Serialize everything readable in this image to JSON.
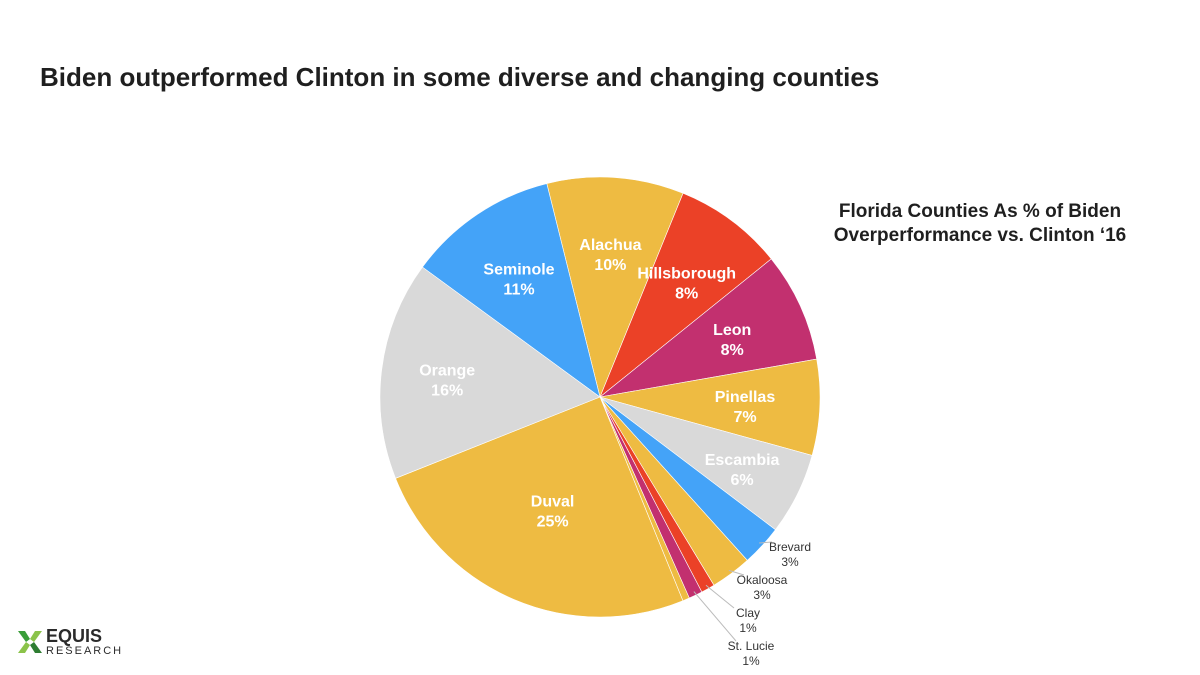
{
  "headline": "Biden outperformed Clinton in some diverse and changing counties",
  "chart_data": {
    "type": "pie",
    "title_lines": [
      "Florida Counties As % of Biden",
      "Overperformance vs. Clinton ‘16"
    ],
    "legend": "none",
    "slices": [
      {
        "name": "Alachua",
        "value": 10,
        "label": "10%",
        "color": "#EEBB42"
      },
      {
        "name": "Hillsborough",
        "value": 8,
        "label": "8%",
        "color": "#EB4127"
      },
      {
        "name": "Leon",
        "value": 8,
        "label": "8%",
        "color": "#C2306F"
      },
      {
        "name": "Pinellas",
        "value": 7,
        "label": "7%",
        "color": "#EEBB42"
      },
      {
        "name": "Escambia",
        "value": 6,
        "label": "6%",
        "color": "#D9D9D9"
      },
      {
        "name": "Brevard",
        "value": 3,
        "label": "3%",
        "color": "#44A3F8"
      },
      {
        "name": "Okaloosa",
        "value": 3,
        "label": "3%",
        "color": "#EEBB42"
      },
      {
        "name": "Clay",
        "value": 1,
        "label": "1%",
        "color": "#EB4127"
      },
      {
        "name": "St. Lucie",
        "value": 1,
        "label": "1%",
        "color": "#C2306F"
      },
      {
        "name": "",
        "value": 0.5,
        "label": "",
        "color": "#EEBB42"
      },
      {
        "name": "Duval",
        "value": 25,
        "label": "25%",
        "color": "#EEBB42"
      },
      {
        "name": "Orange",
        "value": 16,
        "label": "16%",
        "color": "#D9D9D9"
      },
      {
        "name": "Seminole",
        "value": 11,
        "label": "11%",
        "color": "#44A3F8"
      }
    ]
  },
  "logo": {
    "name": "EQUIS",
    "sub": "RESEARCH",
    "colors": [
      "#3a9d3a",
      "#8bc34a",
      "#2e7d32"
    ]
  }
}
